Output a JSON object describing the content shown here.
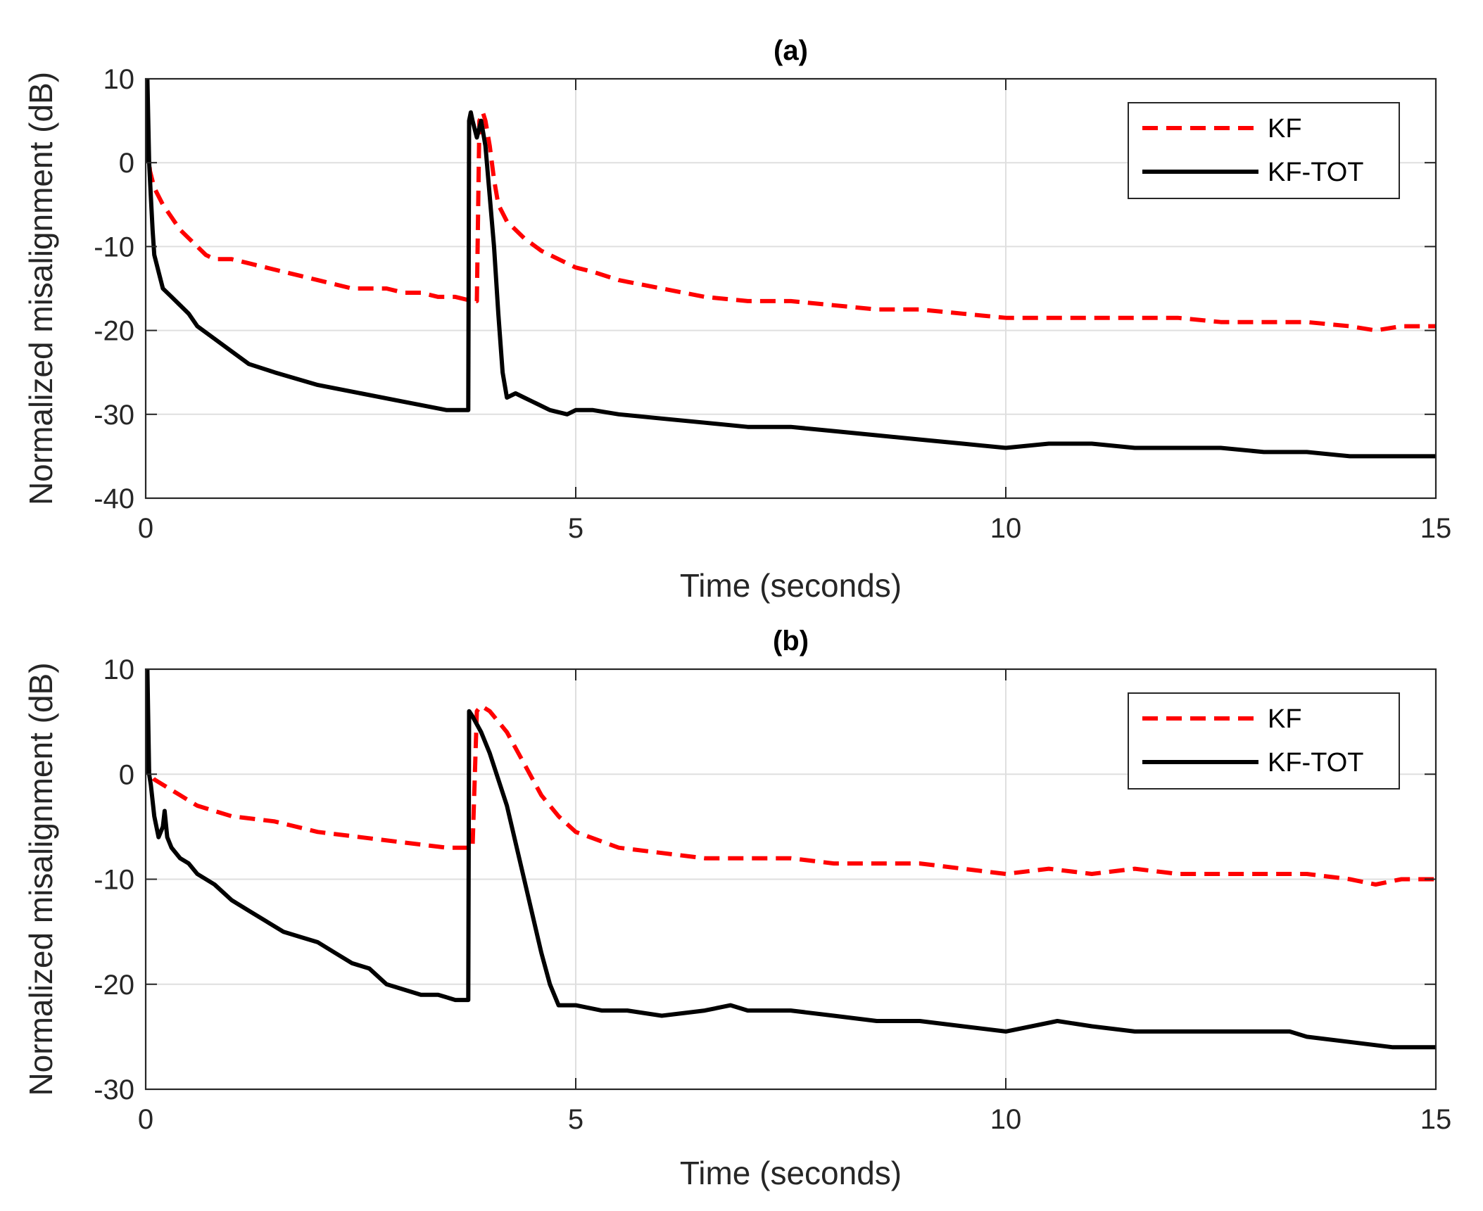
{
  "chart_data": [
    {
      "type": "line",
      "panel": "a",
      "title": "(a)",
      "xlabel": "Time (seconds)",
      "ylabel": "Normalized misalignment (dB)",
      "xlim": [
        0,
        15
      ],
      "ylim": [
        -40,
        10
      ],
      "xticks": [
        0,
        5,
        10,
        15
      ],
      "yticks": [
        -40,
        -30,
        -20,
        -10,
        0,
        10
      ],
      "grid": true,
      "legend_position": "top-right",
      "series": [
        {
          "name": "KF",
          "color": "#ff0000",
          "style": "dashed",
          "x": [
            0,
            0.02,
            0.05,
            0.1,
            0.2,
            0.3,
            0.4,
            0.5,
            0.6,
            0.7,
            0.8,
            1.0,
            1.2,
            1.4,
            1.6,
            1.8,
            2.0,
            2.2,
            2.4,
            2.6,
            2.8,
            3.0,
            3.2,
            3.4,
            3.6,
            3.8,
            3.85,
            3.88,
            3.92,
            3.95,
            4.0,
            4.05,
            4.1,
            4.2,
            4.3,
            4.4,
            4.6,
            4.8,
            5.0,
            5.2,
            5.5,
            6.0,
            6.5,
            7.0,
            7.5,
            8.0,
            8.5,
            9.0,
            9.5,
            10.0,
            10.5,
            11.0,
            11.5,
            12.0,
            12.5,
            13.0,
            13.5,
            14.0,
            14.3,
            14.6,
            15.0
          ],
          "y": [
            8,
            2,
            -1,
            -3,
            -5,
            -6.5,
            -8,
            -9,
            -10,
            -11,
            -11.5,
            -11.5,
            -12,
            -12.5,
            -13,
            -13.5,
            -14,
            -14.5,
            -15,
            -15,
            -15,
            -15.5,
            -15.5,
            -16,
            -16,
            -16.5,
            -16.5,
            5,
            6,
            5,
            2,
            -2,
            -5,
            -7,
            -8,
            -9,
            -10.5,
            -11.5,
            -12.5,
            -13,
            -14,
            -15,
            -16,
            -16.5,
            -16.5,
            -17,
            -17.5,
            -17.5,
            -18,
            -18.5,
            -18.5,
            -18.5,
            -18.5,
            -18.5,
            -19,
            -19,
            -19,
            -19.5,
            -20,
            -19.5,
            -19.5
          ]
        },
        {
          "name": "KF-TOT",
          "color": "#000000",
          "style": "solid",
          "x": [
            0,
            0.02,
            0.04,
            0.06,
            0.08,
            0.1,
            0.15,
            0.2,
            0.3,
            0.4,
            0.5,
            0.6,
            0.8,
            1.0,
            1.2,
            1.5,
            2.0,
            2.5,
            3.0,
            3.5,
            3.7,
            3.75,
            3.76,
            3.78,
            3.8,
            3.85,
            3.9,
            3.95,
            4.0,
            4.05,
            4.1,
            4.15,
            4.2,
            4.3,
            4.4,
            4.5,
            4.7,
            4.9,
            5.0,
            5.2,
            5.5,
            6.0,
            6.5,
            7.0,
            7.5,
            8.0,
            8.5,
            9.0,
            9.5,
            10.0,
            10.5,
            11.0,
            11.5,
            12.0,
            12.5,
            13.0,
            13.5,
            14.0,
            14.5,
            15.0
          ],
          "y": [
            0,
            10,
            0,
            -4,
            -8,
            -11,
            -13,
            -15,
            -16,
            -17,
            -18,
            -19.5,
            -21,
            -22.5,
            -24,
            -25,
            -26.5,
            -27.5,
            -28.5,
            -29.5,
            -29.5,
            -29.5,
            5,
            6,
            5,
            3,
            5,
            2,
            -4,
            -10,
            -18,
            -25,
            -28,
            -27.5,
            -28,
            -28.5,
            -29.5,
            -30,
            -29.5,
            -29.5,
            -30,
            -30.5,
            -31,
            -31.5,
            -31.5,
            -32,
            -32.5,
            -33,
            -33.5,
            -34,
            -33.5,
            -33.5,
            -34,
            -34,
            -34,
            -34.5,
            -34.5,
            -35,
            -35,
            -35
          ]
        }
      ]
    },
    {
      "type": "line",
      "panel": "b",
      "title": "(b)",
      "xlabel": "Time (seconds)",
      "ylabel": "Normalized misalignment (dB)",
      "xlim": [
        0,
        15
      ],
      "ylim": [
        -30,
        10
      ],
      "xticks": [
        0,
        5,
        10,
        15
      ],
      "yticks": [
        -30,
        -20,
        -10,
        0,
        10
      ],
      "grid": true,
      "legend_position": "top-right",
      "series": [
        {
          "name": "KF",
          "color": "#ff0000",
          "style": "dashed",
          "x": [
            0,
            0.02,
            0.05,
            0.1,
            0.2,
            0.4,
            0.6,
            0.8,
            1.0,
            1.5,
            2.0,
            2.5,
            3.0,
            3.5,
            3.8,
            3.85,
            3.9,
            4.0,
            4.2,
            4.4,
            4.6,
            4.8,
            5.0,
            5.5,
            6.0,
            6.5,
            7.0,
            7.5,
            8.0,
            8.5,
            9.0,
            9.5,
            10.0,
            10.5,
            11.0,
            11.5,
            12.0,
            12.5,
            13.0,
            13.5,
            14.0,
            14.3,
            14.6,
            15.0
          ],
          "y": [
            4,
            1,
            0,
            -0.5,
            -1,
            -2,
            -3,
            -3.5,
            -4,
            -4.5,
            -5.5,
            -6,
            -6.5,
            -7,
            -7,
            6,
            6.5,
            6,
            4,
            1,
            -2,
            -4,
            -5.5,
            -7,
            -7.5,
            -8,
            -8,
            -8,
            -8.5,
            -8.5,
            -8.5,
            -9,
            -9.5,
            -9,
            -9.5,
            -9,
            -9.5,
            -9.5,
            -9.5,
            -9.5,
            -10,
            -10.5,
            -10,
            -10
          ]
        },
        {
          "name": "KF-TOT",
          "color": "#000000",
          "style": "solid",
          "x": [
            0,
            0.02,
            0.04,
            0.06,
            0.1,
            0.15,
            0.2,
            0.22,
            0.25,
            0.3,
            0.4,
            0.5,
            0.6,
            0.8,
            1.0,
            1.2,
            1.4,
            1.6,
            1.8,
            2.0,
            2.2,
            2.4,
            2.6,
            2.8,
            3.0,
            3.2,
            3.4,
            3.6,
            3.75,
            3.76,
            3.8,
            3.9,
            4.0,
            4.2,
            4.4,
            4.6,
            4.7,
            4.8,
            5.0,
            5.3,
            5.6,
            6.0,
            6.5,
            6.8,
            7.0,
            7.5,
            8.0,
            8.5,
            9.0,
            9.5,
            10.0,
            10.3,
            10.6,
            11.0,
            11.5,
            12.0,
            12.5,
            13.0,
            13.3,
            13.5,
            14.0,
            14.5,
            15.0
          ],
          "y": [
            0,
            10,
            0,
            -1,
            -4,
            -6,
            -5,
            -3.5,
            -6,
            -7,
            -8,
            -8.5,
            -9.5,
            -10.5,
            -12,
            -13,
            -14,
            -15,
            -15.5,
            -16,
            -17,
            -18,
            -18.5,
            -20,
            -20.5,
            -21,
            -21,
            -21.5,
            -21.5,
            6,
            5.5,
            4,
            2,
            -3,
            -10,
            -17,
            -20,
            -22,
            -22,
            -22.5,
            -22.5,
            -23,
            -22.5,
            -22,
            -22.5,
            -22.5,
            -23,
            -23.5,
            -23.5,
            -24,
            -24.5,
            -24,
            -23.5,
            -24,
            -24.5,
            -24.5,
            -24.5,
            -24.5,
            -24.5,
            -25,
            -25.5,
            -26,
            -26
          ]
        }
      ]
    }
  ]
}
